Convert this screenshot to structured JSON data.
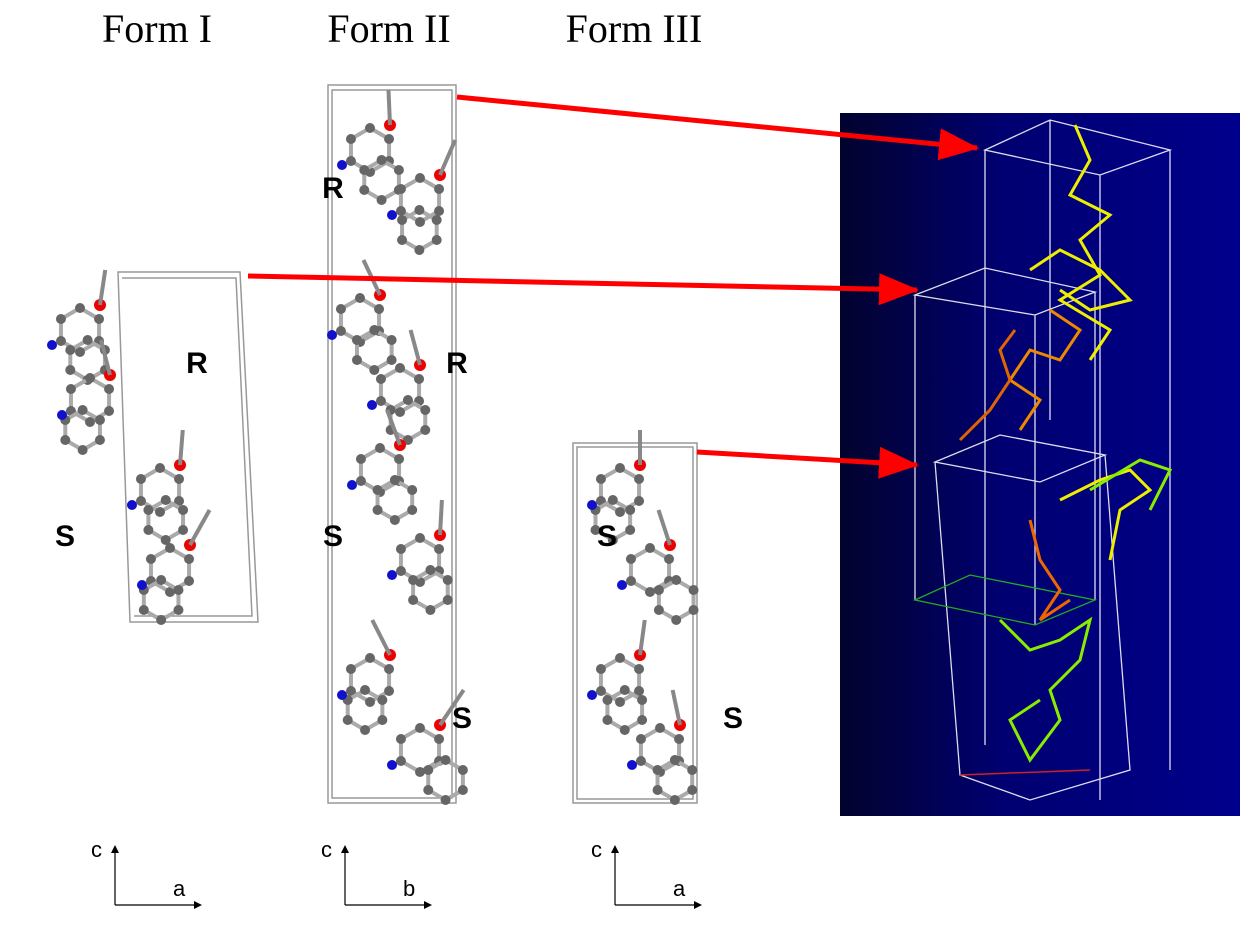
{
  "headers": [
    "Form I",
    "Form II",
    "Form III"
  ],
  "panels": [
    {
      "labels": [
        "R",
        "S"
      ],
      "axes": {
        "up": "c",
        "right": "a"
      }
    },
    {
      "labels": [
        "R",
        "R",
        "S",
        "S"
      ],
      "axes": {
        "up": "c",
        "right": "b"
      }
    },
    {
      "labels": [
        "S",
        "S"
      ],
      "axes": {
        "up": "c",
        "right": "a"
      }
    }
  ]
}
